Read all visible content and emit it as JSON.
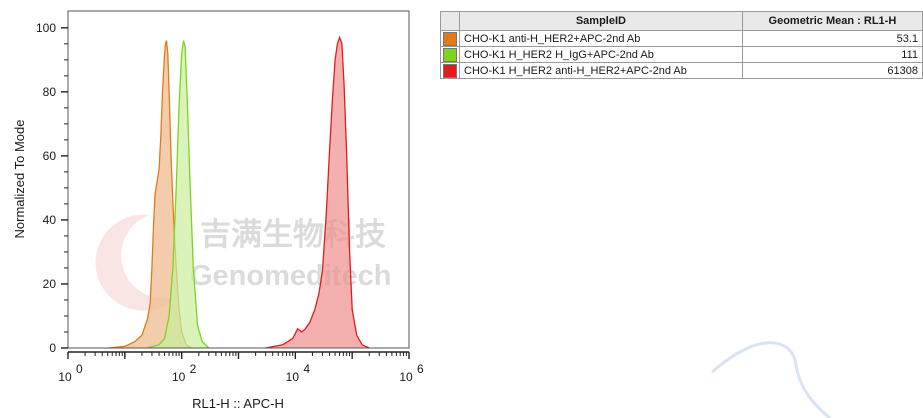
{
  "chart_data": {
    "type": "area",
    "xlabel": "RL1-H :: APC-H",
    "ylabel": "Normalized To Mode",
    "x_scale": "log",
    "xlim": [
      1,
      1000000
    ],
    "ylim": [
      0,
      104
    ],
    "x_ticks": [
      {
        "base": "10",
        "exp": "0",
        "value": 1
      },
      {
        "base": "10",
        "exp": "2",
        "value": 100
      },
      {
        "base": "10",
        "exp": "4",
        "value": 10000
      },
      {
        "base": "10",
        "exp": "6",
        "value": 1000000
      }
    ],
    "y_ticks": [
      0,
      20,
      40,
      60,
      80,
      100
    ],
    "legend_placement": "top-right table",
    "series": [
      {
        "name": "CHO-K1 anti-H_HER2+APC-2nd Ab",
        "color": "#e07b1a",
        "fill": "#eeb888",
        "geo_mean": "53.1",
        "points": [
          [
            5,
            0
          ],
          [
            10,
            0.5
          ],
          [
            15,
            2
          ],
          [
            20,
            4
          ],
          [
            25,
            9
          ],
          [
            28,
            14
          ],
          [
            30,
            25
          ],
          [
            32,
            38
          ],
          [
            34,
            48
          ],
          [
            37,
            52
          ],
          [
            40,
            56
          ],
          [
            43,
            66
          ],
          [
            46,
            80
          ],
          [
            50,
            92
          ],
          [
            52,
            95
          ],
          [
            54,
            96
          ],
          [
            57,
            92
          ],
          [
            60,
            80
          ],
          [
            65,
            60
          ],
          [
            70,
            45
          ],
          [
            80,
            25
          ],
          [
            90,
            12
          ],
          [
            100,
            5
          ],
          [
            120,
            1
          ],
          [
            150,
            0
          ]
        ]
      },
      {
        "name": "CHO-K1 H_HER2 H_IgG+APC-2nd Ab",
        "color": "#7ed321",
        "fill": "#c9ee9d",
        "geo_mean": "111",
        "points": [
          [
            25,
            0
          ],
          [
            40,
            1
          ],
          [
            50,
            3
          ],
          [
            60,
            10
          ],
          [
            70,
            25
          ],
          [
            80,
            50
          ],
          [
            90,
            76
          ],
          [
            100,
            92
          ],
          [
            108,
            96
          ],
          [
            115,
            94
          ],
          [
            125,
            78
          ],
          [
            140,
            52
          ],
          [
            160,
            25
          ],
          [
            190,
            7
          ],
          [
            230,
            2
          ],
          [
            300,
            0
          ]
        ]
      },
      {
        "name": "CHO-K1 H_HER2 anti-H_HER2+APC-2nd Ab",
        "color": "#e11c1c",
        "fill": "#f08d8d",
        "geo_mean": "61308",
        "points": [
          [
            3000,
            0
          ],
          [
            6000,
            1
          ],
          [
            9000,
            3
          ],
          [
            11000,
            6
          ],
          [
            13000,
            5
          ],
          [
            15000,
            6
          ],
          [
            18000,
            8
          ],
          [
            22000,
            12
          ],
          [
            26000,
            17
          ],
          [
            30000,
            24
          ],
          [
            35000,
            42
          ],
          [
            40000,
            62
          ],
          [
            45000,
            78
          ],
          [
            50000,
            90
          ],
          [
            55000,
            95
          ],
          [
            60000,
            97
          ],
          [
            66000,
            95
          ],
          [
            72000,
            82
          ],
          [
            80000,
            60
          ],
          [
            90000,
            30
          ],
          [
            100000,
            12
          ],
          [
            120000,
            4
          ],
          [
            150000,
            1
          ],
          [
            200000,
            0
          ]
        ]
      }
    ]
  },
  "table": {
    "col_sample": "SampleID",
    "col_geo": "Geometric Mean : RL1-H"
  },
  "watermark": {
    "cn": "吉满生物科技",
    "en": "Genomeditech"
  }
}
